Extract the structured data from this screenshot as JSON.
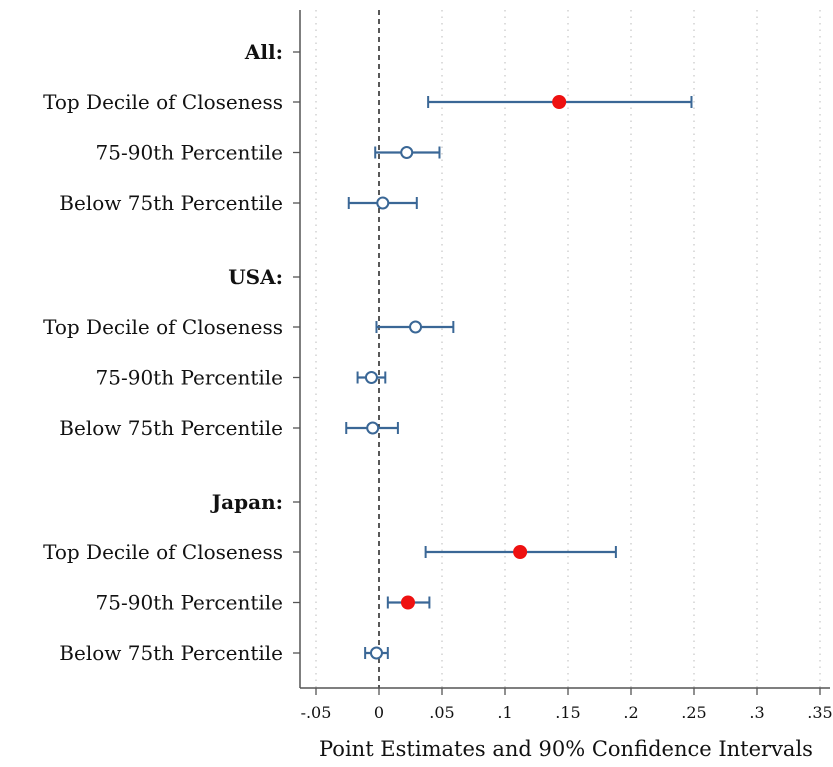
{
  "chart_data": {
    "type": "scatter",
    "xlabel": "Point Estimates and 90% Confidence Intervals",
    "xlim": [
      -0.05,
      0.35
    ],
    "x_ticks": [
      -0.05,
      0,
      0.05,
      0.1,
      0.15,
      0.2,
      0.25,
      0.3,
      0.35
    ],
    "x_tick_labels": [
      "-.05",
      "0",
      ".05",
      ".1",
      ".15",
      ".2",
      ".25",
      ".3",
      ".35"
    ],
    "reference_line_x": 0,
    "grid": "vertical dotted",
    "groups": [
      {
        "label": "All:",
        "rows": [
          {
            "label": "Top Decile of Closeness",
            "estimate": 0.143,
            "lo": 0.039,
            "hi": 0.248,
            "significant": true
          },
          {
            "label": "75-90th Percentile",
            "estimate": 0.022,
            "lo": -0.003,
            "hi": 0.048,
            "significant": false
          },
          {
            "label": "Below 75th Percentile",
            "estimate": 0.003,
            "lo": -0.024,
            "hi": 0.03,
            "significant": false
          }
        ]
      },
      {
        "label": "USA:",
        "rows": [
          {
            "label": "Top Decile of Closeness",
            "estimate": 0.029,
            "lo": -0.002,
            "hi": 0.059,
            "significant": false
          },
          {
            "label": "75-90th Percentile",
            "estimate": -0.006,
            "lo": -0.017,
            "hi": 0.005,
            "significant": false
          },
          {
            "label": "Below 75th Percentile",
            "estimate": -0.005,
            "lo": -0.026,
            "hi": 0.015,
            "significant": false
          }
        ]
      },
      {
        "label": "Japan:",
        "rows": [
          {
            "label": "Top Decile of Closeness",
            "estimate": 0.112,
            "lo": 0.037,
            "hi": 0.188,
            "significant": true
          },
          {
            "label": "75-90th Percentile",
            "estimate": 0.023,
            "lo": 0.007,
            "hi": 0.04,
            "significant": true
          },
          {
            "label": "Below 75th Percentile",
            "estimate": -0.002,
            "lo": -0.011,
            "hi": 0.007,
            "significant": false
          }
        ]
      }
    ],
    "colors": {
      "ci_line": "#3a6796",
      "significant_marker": "#ee1111",
      "axis": "#555555",
      "grid": "#bbbbbb"
    }
  }
}
